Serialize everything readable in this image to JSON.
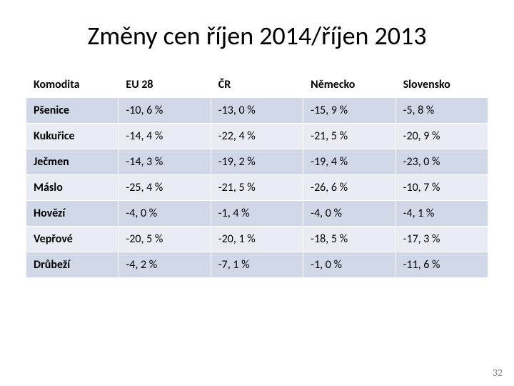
{
  "title": "Změny cen říjen 2014/říjen 2013",
  "page_number": "32",
  "table": {
    "columns": [
      "Komodita",
      "EU 28",
      "ČR",
      "Německo",
      "Slovensko"
    ],
    "rows": [
      [
        "Pšenice",
        "-10, 6 %",
        "-13, 0 %",
        "-15, 9 %",
        "-5, 8 %"
      ],
      [
        "Kukuřice",
        "-14, 4 %",
        "-22, 4 %",
        "-21, 5 %",
        "-20, 9 %"
      ],
      [
        "Ječmen",
        "-14, 3 %",
        "-19, 2 %",
        "-19, 4 %",
        "-23, 0 %"
      ],
      [
        "Máslo",
        "-25, 4 %",
        "-21, 5 %",
        "-26, 6 %",
        "-10, 7 %"
      ],
      [
        "Hovězí",
        "-4, 0 %",
        "-1, 4 %",
        "-4, 0 %",
        "-4, 1 %"
      ],
      [
        "Vepřové",
        "-20, 5 %",
        "-20, 1 %",
        "-18, 5 %",
        "-17, 3 %"
      ],
      [
        "Drůbeží",
        "-4, 2 %",
        "-7, 1 %",
        "-1, 0 %",
        "-11, 6 %"
      ]
    ],
    "header_bg": "#ffffff",
    "band_a_bg": "#d0d8e8",
    "band_b_bg": "#e9ecf5",
    "border_color": "#ffffff",
    "title_fontsize": 36,
    "cell_fontsize": 16
  }
}
